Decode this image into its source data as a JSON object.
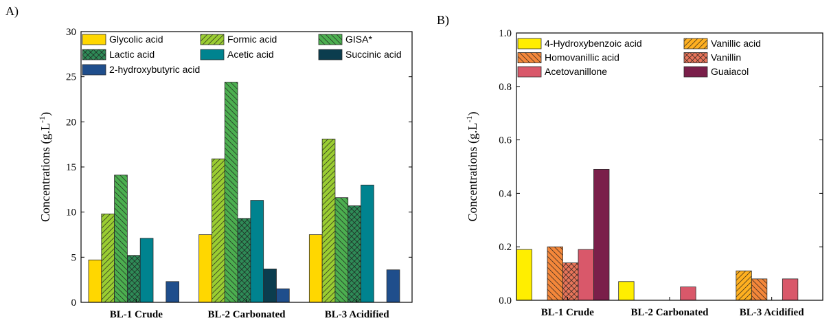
{
  "chart_data": [
    {
      "type": "bar",
      "panel_label": "A)",
      "ylabel": "Concentrations (g.L",
      "ylabel_sup": "-1",
      "ylabel_close": ")",
      "ylim": [
        0,
        30
      ],
      "yticks": [
        0,
        5,
        10,
        15,
        20,
        25,
        30
      ],
      "ytick_labels": [
        "0",
        "5",
        "10",
        "15",
        "20",
        "25",
        "30"
      ],
      "categories": [
        "BL-1 Crude",
        "BL-2 Carbonated",
        "BL-3 Acidified"
      ],
      "legend_columns": 3,
      "series": [
        {
          "name": "Glycolic acid",
          "color": "#FFD700",
          "pattern": "solid",
          "values": [
            4.7,
            7.5,
            7.5
          ]
        },
        {
          "name": "Formic acid",
          "color": "#9ACD32",
          "pattern": "hatch-forward",
          "values": [
            9.8,
            15.9,
            18.1
          ]
        },
        {
          "name": "GISA*",
          "color": "#4CAF50",
          "pattern": "hatch-back",
          "values": [
            14.1,
            24.4,
            11.6
          ]
        },
        {
          "name": "Lactic acid",
          "color": "#2E8B57",
          "pattern": "crosshatch",
          "values": [
            5.2,
            9.3,
            10.7
          ]
        },
        {
          "name": "Acetic acid",
          "color": "#00838F",
          "pattern": "solid",
          "values": [
            7.1,
            11.3,
            13.0
          ]
        },
        {
          "name": "Succinic acid",
          "color": "#0B3D4E",
          "pattern": "solid",
          "values": [
            0,
            3.7,
            0
          ]
        },
        {
          "name": "2-hydroxybutyric acid",
          "color": "#1F4E8C",
          "pattern": "solid",
          "values": [
            2.3,
            1.5,
            3.6
          ]
        }
      ]
    },
    {
      "type": "bar",
      "panel_label": "B)",
      "ylabel": "Concentrations (g.L",
      "ylabel_sup": "-1",
      "ylabel_close": ")",
      "ylim": [
        0,
        1.0
      ],
      "yticks": [
        0,
        0.2,
        0.4,
        0.6,
        0.8,
        1.0
      ],
      "ytick_labels": [
        "0.0",
        "0.2",
        "0.4",
        "0.6",
        "0.8",
        "1.0"
      ],
      "categories": [
        "BL-1 Crude",
        "BL-2 Carbonated",
        "BL-3 Acidified"
      ],
      "legend_columns": 2,
      "series": [
        {
          "name": "4-Hydroxybenzoic acid",
          "color": "#FFEE00",
          "pattern": "solid",
          "values": [
            0.19,
            0.07,
            0
          ]
        },
        {
          "name": "Vanillic acid",
          "color": "#FFB020",
          "pattern": "hatch-forward",
          "values": [
            0,
            0,
            0.11
          ]
        },
        {
          "name": "Homovanillic acid",
          "color": "#F4873A",
          "pattern": "hatch-back",
          "values": [
            0.2,
            0,
            0.08
          ]
        },
        {
          "name": "Vanillin",
          "color": "#E8755A",
          "pattern": "crosshatch",
          "values": [
            0.14,
            0,
            0
          ]
        },
        {
          "name": "Acetovanillone",
          "color": "#D9586A",
          "pattern": "solid",
          "values": [
            0.19,
            0.05,
            0.08
          ]
        },
        {
          "name": "Guaiacol",
          "color": "#7A1F4A",
          "pattern": "solid",
          "values": [
            0.49,
            0,
            0
          ]
        }
      ]
    }
  ]
}
